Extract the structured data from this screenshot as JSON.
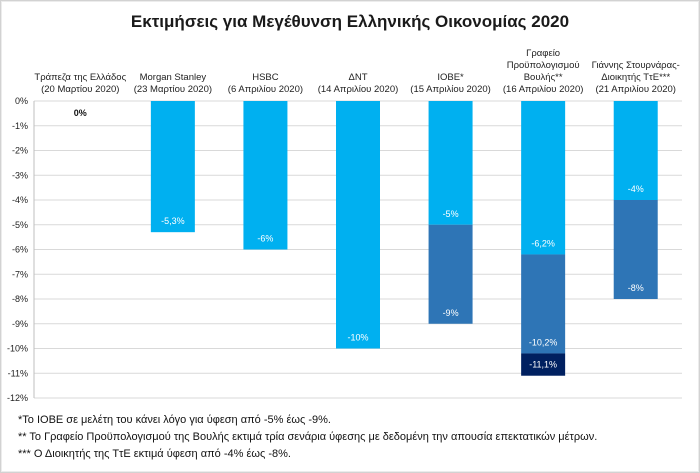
{
  "chart_data": {
    "type": "bar",
    "title": "Εκτιμήσεις για Μεγέθυνση Ελληνικής Οικονομίας 2020",
    "ylim": [
      -12,
      0
    ],
    "y_ticks": [
      "0%",
      "-1%",
      "-2%",
      "-3%",
      "-4%",
      "-5%",
      "-6%",
      "-7%",
      "-8%",
      "-9%",
      "-10%",
      "-11%",
      "-12%"
    ],
    "y_tick_values": [
      0,
      -1,
      -2,
      -3,
      -4,
      -5,
      -6,
      -7,
      -8,
      -9,
      -10,
      -11,
      -12
    ],
    "grid": true,
    "categories": [
      {
        "lines": [
          "Τράπεζα της Ελλάδος",
          "(20 Μαρτίου 2020)"
        ]
      },
      {
        "lines": [
          "Morgan Stanley",
          "(23 Μαρτίου 2020)"
        ]
      },
      {
        "lines": [
          "HSBC",
          "(6 Απριλίου 2020)"
        ]
      },
      {
        "lines": [
          "ΔΝΤ",
          "(14 Απριλίου 2020)"
        ]
      },
      {
        "lines": [
          "ΙΟΒΕ*",
          "(15 Απριλίου 2020)"
        ]
      },
      {
        "lines": [
          "Γραφείο",
          "Προϋπολογισμού",
          "Βουλής**",
          "(16 Απριλίου 2020)"
        ]
      },
      {
        "lines": [
          "Γιάννης Στουρνάρας-",
          "Διοικητής ΤτΕ***",
          "(21 Απριλίου 2020)"
        ]
      }
    ],
    "series": [
      {
        "name": "scenario-1",
        "color": "#00b0f0",
        "values": [
          0,
          -5.3,
          -6,
          -10,
          -5,
          -6.2,
          -4
        ],
        "labels": [
          "0%",
          "-5,3%",
          "-6%",
          "-10%",
          "-5%",
          "-6,2%",
          "-4%"
        ]
      },
      {
        "name": "scenario-2",
        "color": "#2e75b6",
        "values": [
          null,
          null,
          null,
          null,
          -9,
          -10.2,
          -8
        ],
        "labels": [
          "",
          "",
          "",
          "",
          "-9%",
          "-10,2%",
          "-8%"
        ]
      },
      {
        "name": "scenario-3",
        "color": "#002060",
        "values": [
          null,
          null,
          null,
          null,
          null,
          -11.1,
          null
        ],
        "labels": [
          "",
          "",
          "",
          "",
          "",
          "-11,1%",
          ""
        ]
      }
    ]
  },
  "notes": [
    "*Το ΙΟΒΕ σε μελέτη του κάνει λόγο για ύφεση από -5% έως -9%.",
    "** Το Γραφείο Προϋπολογισμού της Βουλής εκτιμά τρία σενάρια ύφεσης με δεδομένη την απουσία επεκτατικών μέτρων.",
    "*** Ο Διοικητής της ΤτΕ εκτιμά ύφεση από -4% έως -8%."
  ]
}
